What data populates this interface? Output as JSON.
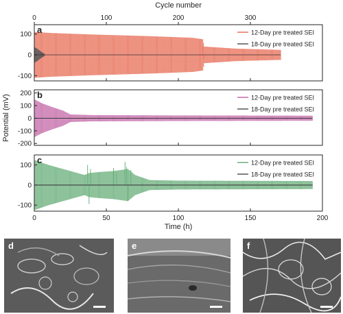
{
  "figure": {
    "top_axis_label": "Cycle number",
    "shared_ylabel": "Potential (mV)",
    "shared_xlabel": "Time (h)"
  },
  "chart_data": [
    {
      "type": "line",
      "panel_label": "a",
      "xlabel": "Time (h)",
      "ylabel": "Potential (mV)",
      "xlim": [
        0,
        200
      ],
      "ylim": [
        -125,
        145
      ],
      "xticks": [
        0,
        50,
        100,
        150,
        200
      ],
      "yticks": [
        -100,
        0,
        100
      ],
      "top_axis": {
        "label": "Cycle number",
        "ticks": [
          0,
          100,
          200,
          300
        ],
        "time_per_cycle_h": 0.5
      },
      "legend_position": "top-right",
      "series": [
        {
          "name": "12-Day pre treated SEI",
          "color": "#e8705a",
          "end_time_h": 171,
          "amplitude_envelope": {
            "x": [
              0,
              12,
              40,
              80,
              110,
              117,
              118,
              140,
              171
            ],
            "y": [
              110,
              105,
              98,
              90,
              82,
              75,
              40,
              30,
              24
            ]
          },
          "spikes": [
            {
              "x": 117,
              "y": 40
            },
            {
              "x": 117.5,
              "y": -22
            }
          ]
        },
        {
          "name": "18-Day pre treated SEI",
          "color": "#555555",
          "end_time_h": 7,
          "amplitude_envelope": {
            "x": [
              0,
              2,
              5,
              7
            ],
            "y": [
              38,
              30,
              14,
              6
            ]
          }
        }
      ]
    },
    {
      "type": "line",
      "panel_label": "b",
      "xlabel": "Time (h)",
      "ylabel": "Potential (mV)",
      "xlim": [
        0,
        200
      ],
      "ylim": [
        -215,
        225
      ],
      "xticks": [
        0,
        50,
        100,
        150,
        200
      ],
      "yticks": [
        -200,
        -100,
        0,
        100,
        200
      ],
      "legend_position": "top-right",
      "series": [
        {
          "name": "12-Day pre treated SEI",
          "color": "#c46aa8",
          "end_time_h": 193,
          "amplitude_envelope": {
            "x": [
              0,
              5,
              12,
              20,
              25,
              40,
              100,
              193
            ],
            "y": [
              150,
              120,
              90,
              60,
              30,
              25,
              22,
              20
            ]
          }
        },
        {
          "name": "18-Day pre treated SEI",
          "color": "#555555",
          "end_time_h": 193,
          "amplitude_envelope": {
            "x": [
              0,
              193
            ],
            "y": [
              2,
              2
            ]
          }
        }
      ]
    },
    {
      "type": "line",
      "panel_label": "c",
      "xlabel": "Time (h)",
      "ylabel": "Potential (mV)",
      "xlim": [
        0,
        200
      ],
      "ylim": [
        -130,
        150
      ],
      "xticks": [
        0,
        50,
        100,
        150,
        200
      ],
      "yticks": [
        -100,
        0,
        100
      ],
      "legend_position": "top-right",
      "series": [
        {
          "name": "12-Day pre treated SEI",
          "color": "#6aaf7c",
          "end_time_h": 193,
          "amplitude_envelope": {
            "x": [
              0,
              10,
              20,
              30,
              35,
              38,
              45,
              55,
              65,
              70,
              80,
              100,
              193
            ],
            "y": [
              125,
              100,
              80,
              60,
              50,
              60,
              65,
              70,
              80,
              50,
              25,
              22,
              20
            ]
          },
          "spikes": [
            {
              "x": 37,
              "y": 100
            },
            {
              "x": 38,
              "y": -95
            },
            {
              "x": 39,
              "y": 80
            },
            {
              "x": 55,
              "y": 85
            },
            {
              "x": 57,
              "y": 60
            },
            {
              "x": 63,
              "y": 115
            },
            {
              "x": 64,
              "y": 90
            },
            {
              "x": 65,
              "y": -80
            },
            {
              "x": 67,
              "y": 75
            }
          ]
        },
        {
          "name": "18-Day pre treated SEI",
          "color": "#555555",
          "end_time_h": 193,
          "amplitude_envelope": {
            "x": [
              0,
              193
            ],
            "y": [
              2,
              2
            ]
          }
        }
      ]
    }
  ],
  "micrographs": [
    {
      "label": "d"
    },
    {
      "label": "e"
    },
    {
      "label": "f"
    }
  ]
}
